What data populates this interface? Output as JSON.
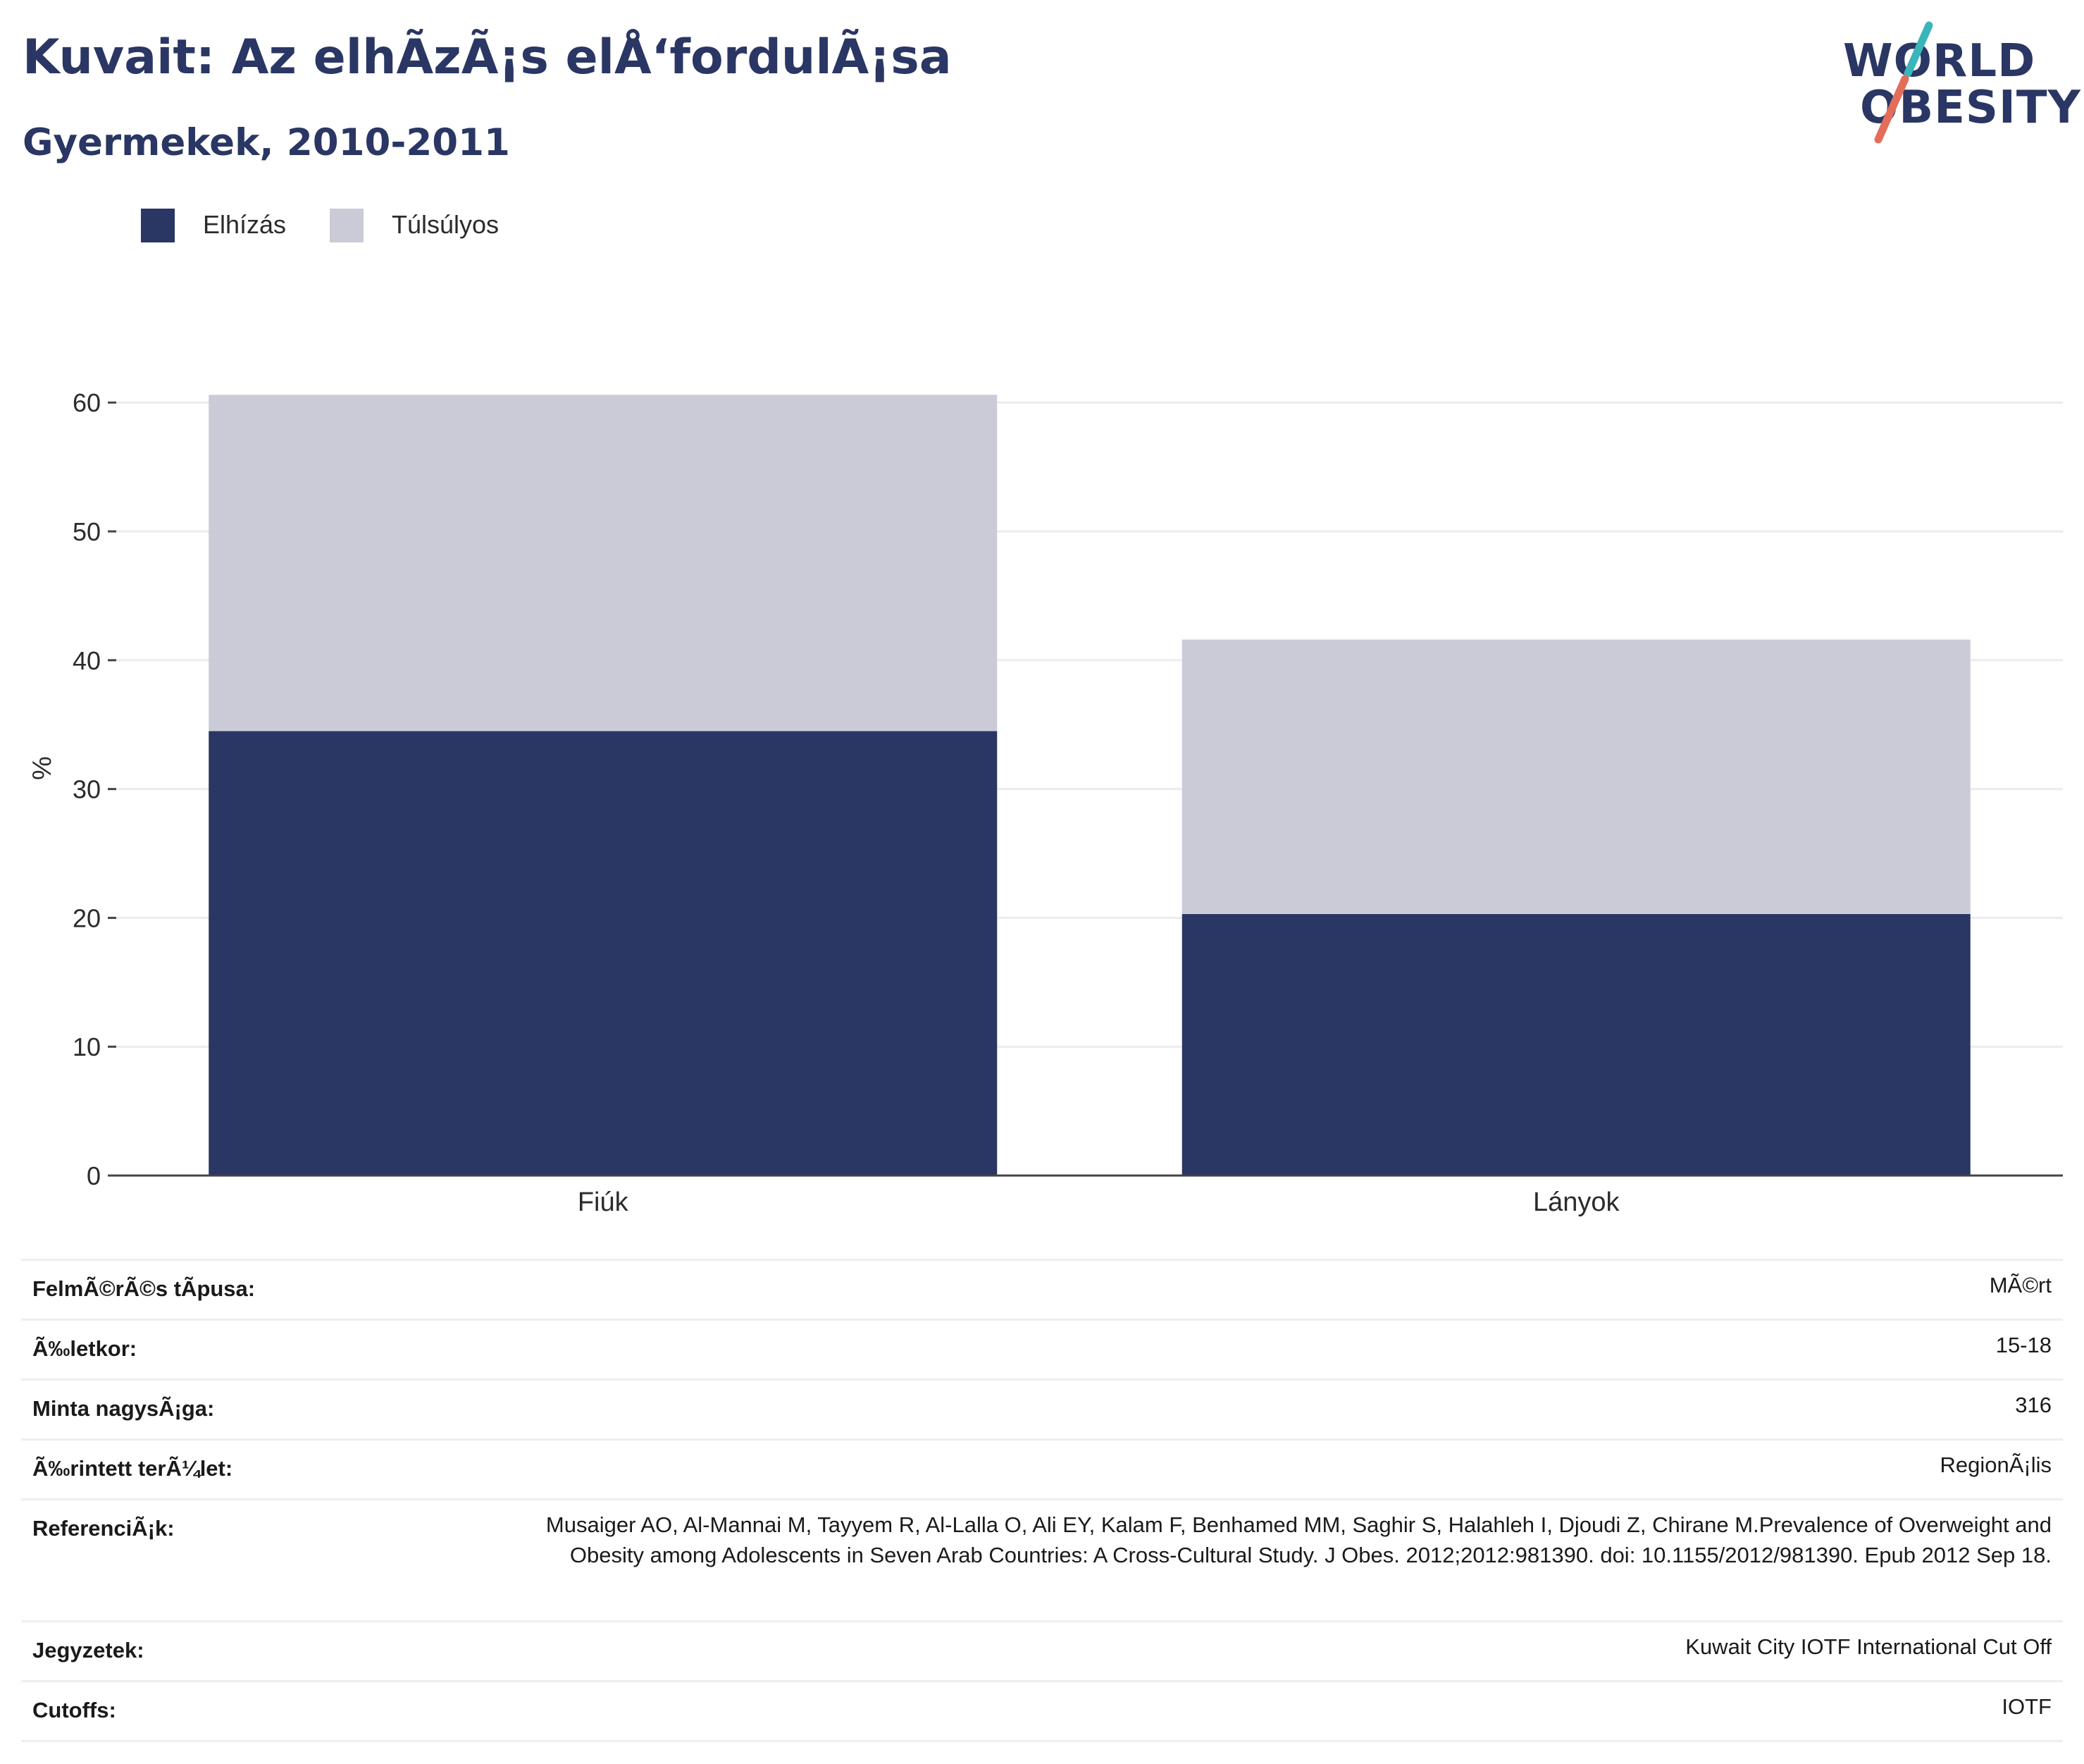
{
  "header": {
    "title": "Kuvait: Az elhÃzÃ¡s elÅ‘fordulÃ¡sa",
    "subtitle": "Gyermekek, 2010-2011"
  },
  "logo": {
    "line1": "WORLD",
    "line2": "OBESITY",
    "accent_colors": [
      "#3ab5b9",
      "#e36d5a"
    ]
  },
  "legend": [
    {
      "label": "Elhízás",
      "color": "#2a3663"
    },
    {
      "label": "Túlsúlyos",
      "color": "#cacbd6"
    }
  ],
  "chart_data": {
    "type": "bar",
    "stacked": true,
    "categories": [
      "Fiúk",
      "Lányok"
    ],
    "series": [
      {
        "name": "Elhízás",
        "values": [
          34.5,
          20.3
        ],
        "color": "#2a3663"
      },
      {
        "name": "Túlsúlyos",
        "values": [
          26.1,
          21.3
        ],
        "color": "#cacbd6"
      }
    ],
    "ylabel": "%",
    "xlabel": "",
    "ylim": [
      0,
      65
    ],
    "yticks": [
      0,
      10,
      20,
      30,
      40,
      50,
      60
    ],
    "grid": true,
    "legend_position": "top-left"
  },
  "info": [
    {
      "label": "FelmÃ©rÃ©s tÃpusa:",
      "value": "MÃ©rt"
    },
    {
      "label": "Ã‰letkor:",
      "value": "15-18"
    },
    {
      "label": "Minta nagysÃ¡ga:",
      "value": "316"
    },
    {
      "label": "Ã‰rintett terÃ¼let:",
      "value": "RegionÃ¡lis"
    },
    {
      "label": "ReferenciÃ¡k:",
      "value": "Musaiger AO, Al-Mannai M, Tayyem R, Al-Lalla O, Ali EY, Kalam F, Benhamed MM, Saghir S, Halahleh I, Djoudi Z, Chirane M.Prevalence of Overweight and Obesity among Adolescents in Seven Arab Countries: A Cross-Cultural Study. J Obes. 2012;2012:981390. doi: 10.1155/2012/981390. Epub 2012 Sep 18."
    },
    {
      "label": "Jegyzetek:",
      "value": "Kuwait City IOTF International Cut Off"
    },
    {
      "label": "Cutoffs:",
      "value": "IOTF"
    }
  ]
}
